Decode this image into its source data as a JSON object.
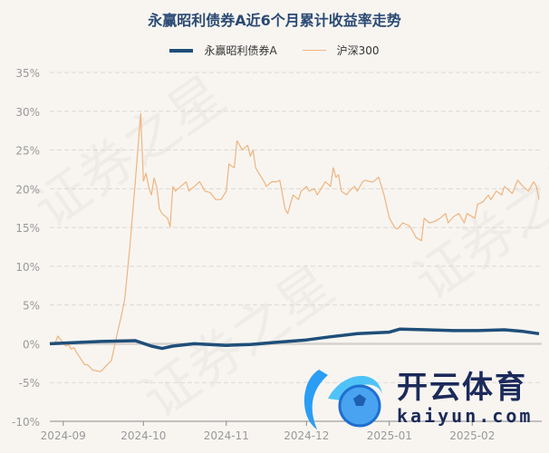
{
  "watermark": "证券之星",
  "logo": {
    "cn": "开云体育",
    "en": "kaiyun.com"
  },
  "chart_data": {
    "type": "line",
    "title": "永赢昭利债券A近6个月累计收益率走势",
    "legend_position": "top",
    "grid": true,
    "ylim": [
      -10,
      35
    ],
    "y_ticks": [
      "35%",
      "30%",
      "25%",
      "20%",
      "15%",
      "10%",
      "5%",
      "0%",
      "-5%",
      "-10%"
    ],
    "y_tick_values": [
      35,
      30,
      25,
      20,
      15,
      10,
      5,
      0,
      -5,
      -10
    ],
    "x_ticks": [
      "2024-09",
      "2024-10",
      "2024-11",
      "2024-12",
      "2025-01",
      "2025-02"
    ],
    "x_range": [
      "2024-08-27",
      "2025-02-27"
    ],
    "series": [
      {
        "name": "永赢昭利债券A",
        "color": "#1f4e79",
        "points": [
          [
            "2024-08-27",
            0.0
          ],
          [
            "2024-09-15",
            0.3
          ],
          [
            "2024-09-28",
            0.4
          ],
          [
            "2024-10-04",
            -0.3
          ],
          [
            "2024-10-08",
            -0.6
          ],
          [
            "2024-10-12",
            -0.3
          ],
          [
            "2024-10-20",
            0.0
          ],
          [
            "2024-11-01",
            -0.2
          ],
          [
            "2024-11-10",
            -0.1
          ],
          [
            "2024-11-20",
            0.2
          ],
          [
            "2024-12-01",
            0.5
          ],
          [
            "2024-12-10",
            0.9
          ],
          [
            "2024-12-20",
            1.3
          ],
          [
            "2025-01-01",
            1.5
          ],
          [
            "2025-01-05",
            1.9
          ],
          [
            "2025-01-15",
            1.8
          ],
          [
            "2025-01-25",
            1.7
          ],
          [
            "2025-02-03",
            1.7
          ],
          [
            "2025-02-13",
            1.8
          ],
          [
            "2025-02-20",
            1.6
          ],
          [
            "2025-02-26",
            1.3
          ]
        ]
      },
      {
        "name": "沪深300",
        "color": "#f0b47e",
        "points": [
          [
            "2024-08-27",
            0.0
          ],
          [
            "2024-08-29",
            0.1
          ],
          [
            "2024-08-30",
            1.0
          ],
          [
            "2024-09-02",
            -0.3
          ],
          [
            "2024-09-03",
            -0.1
          ],
          [
            "2024-09-04",
            -0.7
          ],
          [
            "2024-09-05",
            -0.5
          ],
          [
            "2024-09-06",
            -1.1
          ],
          [
            "2024-09-09",
            -2.7
          ],
          [
            "2024-09-10",
            -2.7
          ],
          [
            "2024-09-11",
            -3.0
          ],
          [
            "2024-09-12",
            -3.4
          ],
          [
            "2024-09-15",
            -3.6
          ],
          [
            "2024-09-18",
            -2.5
          ],
          [
            "2024-09-19",
            -2.2
          ],
          [
            "2024-09-21",
            1.0
          ],
          [
            "2024-09-23",
            4.0
          ],
          [
            "2024-09-24",
            5.7
          ],
          [
            "2024-09-25",
            9.2
          ],
          [
            "2024-09-26",
            12.7
          ],
          [
            "2024-09-28",
            21.0
          ],
          [
            "2024-09-30",
            29.7
          ],
          [
            "2024-10-01",
            21.0
          ],
          [
            "2024-10-02",
            22.0
          ],
          [
            "2024-10-03",
            20.2
          ],
          [
            "2024-10-04",
            19.2
          ],
          [
            "2024-10-05",
            21.4
          ],
          [
            "2024-10-06",
            20.2
          ],
          [
            "2024-10-07",
            17.4
          ],
          [
            "2024-10-08",
            16.8
          ],
          [
            "2024-10-10",
            16.2
          ],
          [
            "2024-10-11",
            15.1
          ],
          [
            "2024-10-12",
            20.3
          ],
          [
            "2024-10-13",
            19.7
          ],
          [
            "2024-10-15",
            20.3
          ],
          [
            "2024-10-17",
            20.9
          ],
          [
            "2024-10-18",
            19.7
          ],
          [
            "2024-10-20",
            20.3
          ],
          [
            "2024-10-22",
            20.9
          ],
          [
            "2024-10-24",
            19.7
          ],
          [
            "2024-10-26",
            19.5
          ],
          [
            "2024-10-28",
            18.6
          ],
          [
            "2024-10-30",
            18.6
          ],
          [
            "2024-11-01",
            19.7
          ],
          [
            "2024-11-02",
            23.2
          ],
          [
            "2024-11-04",
            22.7
          ],
          [
            "2024-11-05",
            26.2
          ],
          [
            "2024-11-07",
            25.0
          ],
          [
            "2024-11-09",
            25.6
          ],
          [
            "2024-11-10",
            24.2
          ],
          [
            "2024-11-11",
            25.0
          ],
          [
            "2024-11-12",
            22.7
          ],
          [
            "2024-11-13",
            22.1
          ],
          [
            "2024-11-15",
            21.0
          ],
          [
            "2024-11-16",
            20.3
          ],
          [
            "2024-11-18",
            20.9
          ],
          [
            "2024-11-20",
            20.9
          ],
          [
            "2024-11-21",
            21.1
          ],
          [
            "2024-11-23",
            17.4
          ],
          [
            "2024-11-24",
            16.8
          ],
          [
            "2024-11-26",
            19.2
          ],
          [
            "2024-11-28",
            18.6
          ],
          [
            "2024-11-29",
            19.7
          ],
          [
            "2024-12-01",
            20.3
          ],
          [
            "2024-12-02",
            19.7
          ],
          [
            "2024-12-04",
            20.0
          ],
          [
            "2024-12-05",
            19.2
          ],
          [
            "2024-12-07",
            20.3
          ],
          [
            "2024-12-08",
            20.9
          ],
          [
            "2024-12-10",
            20.3
          ],
          [
            "2024-12-11",
            22.7
          ],
          [
            "2024-12-12",
            21.5
          ],
          [
            "2024-12-13",
            21.8
          ],
          [
            "2024-12-14",
            19.7
          ],
          [
            "2024-12-16",
            19.2
          ],
          [
            "2024-12-17",
            19.7
          ],
          [
            "2024-12-19",
            20.3
          ],
          [
            "2024-12-20",
            19.7
          ],
          [
            "2024-12-22",
            20.9
          ],
          [
            "2024-12-23",
            21.1
          ],
          [
            "2024-12-25",
            20.9
          ],
          [
            "2024-12-26",
            20.9
          ],
          [
            "2024-12-28",
            21.5
          ],
          [
            "2024-12-30",
            19.2
          ],
          [
            "2025-01-01",
            16.2
          ],
          [
            "2025-01-03",
            15.0
          ],
          [
            "2025-01-04",
            14.8
          ],
          [
            "2025-01-06",
            15.6
          ],
          [
            "2025-01-08",
            15.3
          ],
          [
            "2025-01-09",
            15.0
          ],
          [
            "2025-01-11",
            13.7
          ],
          [
            "2025-01-13",
            13.3
          ],
          [
            "2025-01-14",
            16.2
          ],
          [
            "2025-01-16",
            15.6
          ],
          [
            "2025-01-18",
            15.8
          ],
          [
            "2025-01-20",
            16.2
          ],
          [
            "2025-01-22",
            16.8
          ],
          [
            "2025-01-23",
            15.6
          ],
          [
            "2025-01-25",
            16.4
          ],
          [
            "2025-01-27",
            16.8
          ],
          [
            "2025-01-29",
            15.6
          ],
          [
            "2025-01-30",
            16.8
          ],
          [
            "2025-02-02",
            16.2
          ],
          [
            "2025-02-03",
            18.0
          ],
          [
            "2025-02-05",
            18.3
          ],
          [
            "2025-02-07",
            19.2
          ],
          [
            "2025-02-08",
            18.6
          ],
          [
            "2025-02-10",
            19.7
          ],
          [
            "2025-02-12",
            19.2
          ],
          [
            "2025-02-13",
            20.3
          ],
          [
            "2025-02-15",
            19.7
          ],
          [
            "2025-02-16",
            19.4
          ],
          [
            "2025-02-18",
            21.1
          ],
          [
            "2025-02-20",
            20.3
          ],
          [
            "2025-02-22",
            19.7
          ],
          [
            "2025-02-24",
            20.9
          ],
          [
            "2025-02-25",
            20.3
          ],
          [
            "2025-02-26",
            18.6
          ]
        ]
      }
    ]
  }
}
